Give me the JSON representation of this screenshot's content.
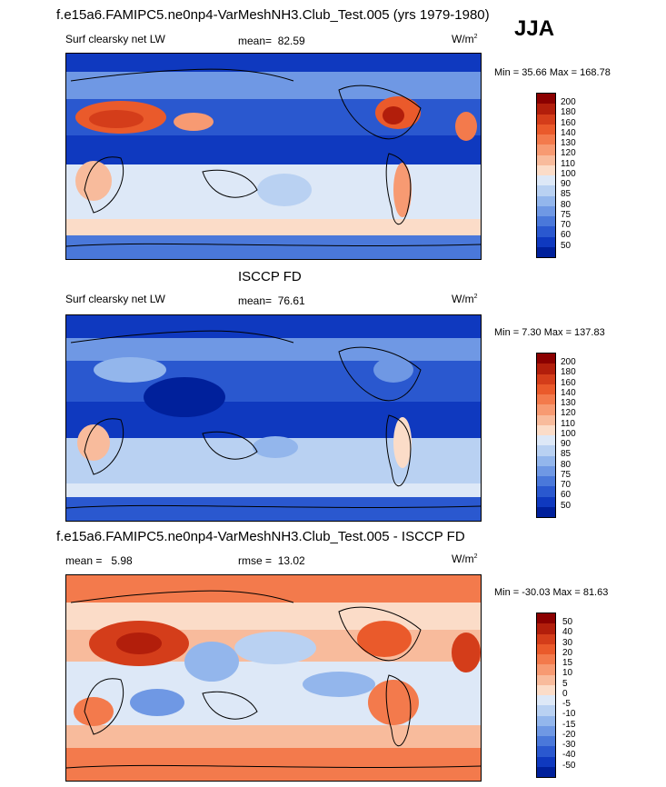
{
  "header": {
    "main_title": "f.e15a6.FAMIPC5.ne0np4-VarMeshNH3.Club_Test.005 (yrs 1979-1980)",
    "season": "JJA"
  },
  "panels": [
    {
      "variable": "Surf clearsky net LW",
      "stat_label": "mean=",
      "stat_value": "82.59",
      "units": "W/m",
      "units_sup": "2",
      "minmax": "Min =  35.66 Max = 168.78",
      "colorbar_labels": [
        "200",
        "180",
        "160",
        "140",
        "130",
        "120",
        "110",
        "100",
        "90",
        "85",
        "80",
        "75",
        "70",
        "60",
        "50"
      ]
    },
    {
      "title": "ISCCP FD",
      "variable": "Surf clearsky net LW",
      "stat_label": "mean=",
      "stat_value": "76.61",
      "units": "W/m",
      "units_sup": "2",
      "minmax": "Min =   7.30 Max = 137.83",
      "colorbar_labels": [
        "200",
        "180",
        "160",
        "140",
        "130",
        "120",
        "110",
        "100",
        "90",
        "85",
        "80",
        "75",
        "70",
        "60",
        "50"
      ]
    },
    {
      "title": "f.e15a6.FAMIPC5.ne0np4-VarMeshNH3.Club_Test.005 - ISCCP FD",
      "mean_label": "mean =",
      "mean_value": "5.98",
      "rmse_label": "rmse =",
      "rmse_value": "13.02",
      "units": "W/m",
      "units_sup": "2",
      "minmax": "Min = -30.03 Max =  81.63",
      "colorbar_labels": [
        "50",
        "40",
        "30",
        "20",
        "15",
        "10",
        "5",
        "0",
        "-5",
        "-10",
        "-15",
        "-20",
        "-30",
        "-40",
        "-50"
      ]
    }
  ],
  "colors": {
    "scale": [
      "#8b0000",
      "#b21e0b",
      "#d43d1a",
      "#ea5a2b",
      "#f37a4c",
      "#f79a72",
      "#f8bb9c",
      "#fbdcc8",
      "#dde8f7",
      "#b9d1f2",
      "#93b6ec",
      "#6f98e4",
      "#4a78da",
      "#2a58cf",
      "#0f39bf",
      "#00209b"
    ],
    "land_outline": "#000000"
  }
}
